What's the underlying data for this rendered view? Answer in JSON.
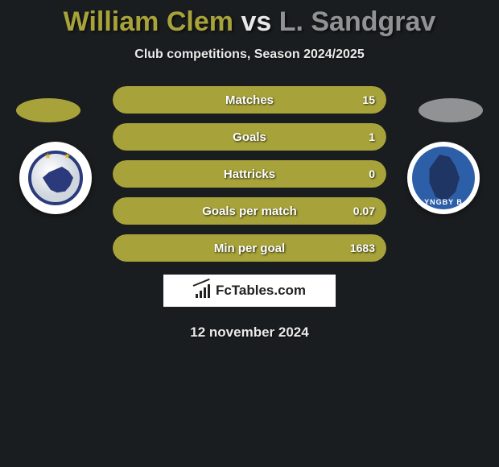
{
  "header": {
    "player1": "William Clem",
    "vs": "vs",
    "player2": "L. Sandgrav",
    "subtitle": "Club competitions, Season 2024/2025"
  },
  "colors": {
    "background": "#1a1d1f",
    "player1": "#a7a33a",
    "player2": "#909294",
    "text": "#ffffff"
  },
  "sides": {
    "left_club": "FC København",
    "right_club": "Lyngby BK"
  },
  "stats": {
    "type": "h2h-bars",
    "pill_width": 340,
    "pill_height": 34,
    "label_fontsize": 15,
    "value_fontsize": 14,
    "rows": [
      {
        "label": "Matches",
        "left_pct": 5,
        "right_pct": 95,
        "right_value": "15"
      },
      {
        "label": "Goals",
        "left_pct": 5,
        "right_pct": 95,
        "right_value": "1"
      },
      {
        "label": "Hattricks",
        "left_pct": 5,
        "right_pct": 95,
        "right_value": "0"
      },
      {
        "label": "Goals per match",
        "left_pct": 5,
        "right_pct": 95,
        "right_value": "0.07"
      },
      {
        "label": "Min per goal",
        "left_pct": 5,
        "right_pct": 95,
        "right_value": "1683"
      }
    ]
  },
  "branding": {
    "logo_text": "FcTables.com"
  },
  "footer": {
    "date": "12 november 2024"
  }
}
